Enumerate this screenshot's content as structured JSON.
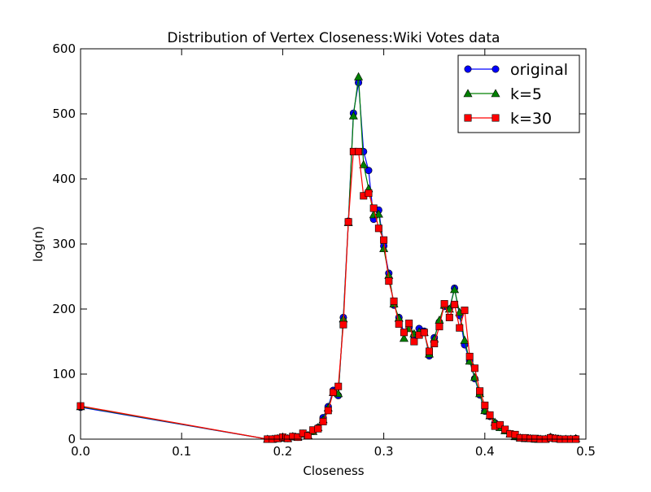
{
  "chart_data": {
    "type": "line",
    "title": "Distribution of Vertex Closeness:Wiki Votes data",
    "xlabel": "Closeness",
    "ylabel": "log(n)",
    "xlim": [
      0.0,
      0.5
    ],
    "ylim": [
      0,
      600
    ],
    "xticks": [
      "0.0",
      "0.1",
      "0.2",
      "0.3",
      "0.4",
      "0.5"
    ],
    "yticks": [
      "0",
      "100",
      "200",
      "300",
      "400",
      "500",
      "600"
    ],
    "grid": false,
    "legend_position": "top-right",
    "series": [
      {
        "name": "original",
        "color": "#0000ff",
        "marker": "circle",
        "x": [
          0.0,
          0.185,
          0.19,
          0.195,
          0.2,
          0.205,
          0.21,
          0.215,
          0.22,
          0.225,
          0.23,
          0.235,
          0.24,
          0.245,
          0.25,
          0.255,
          0.26,
          0.265,
          0.27,
          0.275,
          0.28,
          0.285,
          0.29,
          0.295,
          0.3,
          0.305,
          0.31,
          0.315,
          0.32,
          0.325,
          0.33,
          0.335,
          0.34,
          0.345,
          0.35,
          0.355,
          0.36,
          0.365,
          0.37,
          0.375,
          0.38,
          0.385,
          0.39,
          0.395,
          0.4,
          0.405,
          0.41,
          0.415,
          0.42,
          0.425,
          0.43,
          0.435,
          0.44,
          0.445,
          0.45,
          0.455,
          0.46,
          0.465,
          0.47,
          0.475,
          0.48,
          0.485,
          0.49
        ],
        "y": [
          49,
          0,
          0,
          1,
          2,
          1,
          4,
          3,
          8,
          6,
          12,
          18,
          33,
          50,
          75,
          67,
          187,
          335,
          501,
          548,
          442,
          413,
          338,
          352,
          297,
          255,
          206,
          187,
          164,
          172,
          159,
          170,
          166,
          128,
          156,
          180,
          204,
          200,
          232,
          190,
          145,
          120,
          93,
          68,
          43,
          35,
          25,
          18,
          13,
          8,
          4,
          2,
          1,
          1,
          0,
          0,
          0,
          3,
          1,
          0,
          0,
          0,
          1
        ]
      },
      {
        "name": "k=5",
        "color": "#008000",
        "marker": "triangle",
        "x": [
          0.0,
          0.185,
          0.19,
          0.195,
          0.2,
          0.205,
          0.21,
          0.215,
          0.22,
          0.225,
          0.23,
          0.235,
          0.24,
          0.245,
          0.25,
          0.255,
          0.26,
          0.265,
          0.27,
          0.275,
          0.28,
          0.285,
          0.29,
          0.295,
          0.3,
          0.305,
          0.31,
          0.315,
          0.32,
          0.325,
          0.33,
          0.335,
          0.34,
          0.345,
          0.35,
          0.355,
          0.36,
          0.365,
          0.37,
          0.375,
          0.38,
          0.385,
          0.39,
          0.395,
          0.4,
          0.405,
          0.41,
          0.415,
          0.42,
          0.425,
          0.43,
          0.435,
          0.44,
          0.445,
          0.45,
          0.455,
          0.46,
          0.465,
          0.47,
          0.475,
          0.48,
          0.485,
          0.49
        ],
        "y": [
          50,
          0,
          0,
          1,
          2,
          1,
          4,
          3,
          8,
          6,
          12,
          18,
          30,
          48,
          72,
          70,
          185,
          333,
          497,
          557,
          422,
          385,
          345,
          346,
          293,
          252,
          208,
          186,
          155,
          170,
          162,
          165,
          164,
          131,
          154,
          183,
          206,
          200,
          230,
          195,
          152,
          120,
          95,
          70,
          44,
          36,
          26,
          18,
          13,
          8,
          4,
          2,
          1,
          1,
          0,
          0,
          0,
          3,
          1,
          0,
          0,
          0,
          1
        ]
      },
      {
        "name": "k=30",
        "color": "#ff0000",
        "marker": "square",
        "x": [
          0.0,
          0.185,
          0.19,
          0.195,
          0.2,
          0.205,
          0.21,
          0.215,
          0.22,
          0.225,
          0.23,
          0.235,
          0.24,
          0.245,
          0.25,
          0.255,
          0.26,
          0.265,
          0.27,
          0.275,
          0.28,
          0.285,
          0.29,
          0.295,
          0.3,
          0.305,
          0.31,
          0.315,
          0.32,
          0.325,
          0.33,
          0.335,
          0.34,
          0.345,
          0.35,
          0.355,
          0.36,
          0.365,
          0.37,
          0.375,
          0.38,
          0.385,
          0.39,
          0.395,
          0.4,
          0.405,
          0.41,
          0.415,
          0.42,
          0.425,
          0.43,
          0.435,
          0.44,
          0.445,
          0.45,
          0.455,
          0.46,
          0.465,
          0.47,
          0.475,
          0.48,
          0.485,
          0.49
        ],
        "y": [
          51,
          0,
          0,
          1,
          3,
          1,
          4,
          3,
          9,
          5,
          14,
          16,
          27,
          44,
          72,
          81,
          176,
          334,
          442,
          442,
          374,
          378,
          355,
          324,
          306,
          243,
          212,
          177,
          164,
          178,
          150,
          160,
          164,
          135,
          147,
          173,
          208,
          187,
          207,
          171,
          198,
          127,
          109,
          74,
          52,
          37,
          20,
          22,
          15,
          8,
          7,
          2,
          2,
          1,
          1,
          0,
          0,
          2,
          1,
          0,
          0,
          0,
          0
        ]
      }
    ]
  }
}
